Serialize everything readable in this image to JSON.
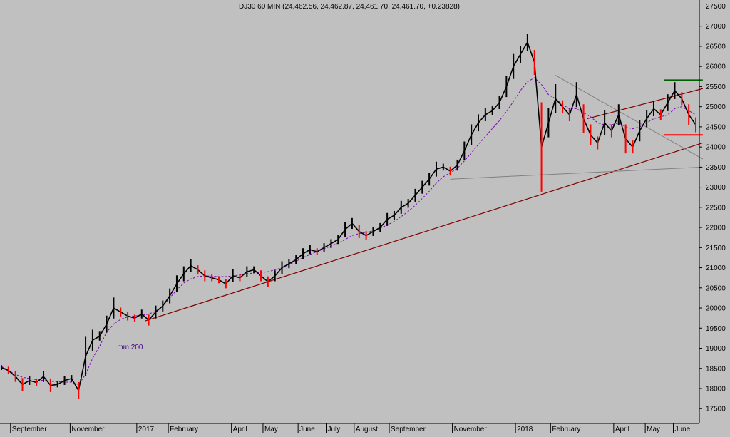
{
  "colors": {
    "background": "#c0c0c0",
    "candle": "#000000",
    "candle_down": "#ff0000",
    "ma_line": "#8000c0",
    "trendline": "#800000",
    "resistance": "#006000",
    "support": "#ff0000",
    "grey_line": "#808080",
    "text": "#000000",
    "annotation": "#400080"
  },
  "chart_data": {
    "type": "line",
    "title": "DJ30 60 MIN (24,462.56, 24,462.87, 24,461.70, 24,461.70, +0.23828)",
    "xlabel": "",
    "ylabel": "",
    "ylim": [
      17150,
      27650
    ],
    "grid": false,
    "y_ticks": [
      17500,
      18000,
      18500,
      19000,
      19500,
      20000,
      20500,
      21000,
      21500,
      22000,
      22500,
      23000,
      23500,
      24000,
      24500,
      25000,
      25500,
      26000,
      26500,
      27000,
      27500
    ],
    "x_ticks": [
      {
        "label": "September",
        "i": 1.5
      },
      {
        "label": "November",
        "i": 10
      },
      {
        "label": "2017",
        "i": 19.5
      },
      {
        "label": "February",
        "i": 24
      },
      {
        "label": "April",
        "i": 33
      },
      {
        "label": "May",
        "i": 37.5
      },
      {
        "label": "June",
        "i": 42.5
      },
      {
        "label": "July",
        "i": 46.5
      },
      {
        "label": "August",
        "i": 50.5
      },
      {
        "label": "September",
        "i": 55.5
      },
      {
        "label": "November",
        "i": 64.5
      },
      {
        "label": "2018",
        "i": 73.5
      },
      {
        "label": "February",
        "i": 78.5
      },
      {
        "label": "April",
        "i": 87.5
      },
      {
        "label": "May",
        "i": 92
      },
      {
        "label": "June",
        "i": 96
      }
    ],
    "series": [
      {
        "values": [
          18520,
          18450,
          18300,
          18100,
          18200,
          18150,
          18300,
          18080,
          18100,
          18200,
          18250,
          17950,
          18800,
          19200,
          19300,
          19600,
          20000,
          19900,
          19800,
          19750,
          19850,
          19700,
          19900,
          20050,
          20300,
          20600,
          20850,
          21050,
          20950,
          20800,
          20750,
          20700,
          20600,
          20800,
          20750,
          20900,
          20950,
          20800,
          20650,
          20800,
          21000,
          21100,
          21200,
          21350,
          21450,
          21400,
          21500,
          21600,
          21700,
          21950,
          22100,
          21900,
          21800,
          21900,
          22000,
          22200,
          22300,
          22500,
          22600,
          22800,
          23000,
          23200,
          23450,
          23500,
          23400,
          23550,
          23900,
          24300,
          24600,
          24800,
          24900,
          25100,
          25500,
          26000,
          26300,
          26600,
          26100,
          24000,
          24600,
          25200,
          25000,
          24800,
          25300,
          24700,
          24300,
          24100,
          24600,
          24400,
          24800,
          24200,
          24000,
          24400,
          24700,
          24950,
          24800,
          25100,
          25400,
          25200,
          24800,
          24550
        ]
      },
      {
        "name": "mm 200",
        "values": [
          18550,
          18450,
          18350,
          18280,
          18250,
          18220,
          18200,
          18180,
          18170,
          18160,
          18160,
          18100,
          18350,
          18750,
          19050,
          19400,
          19600,
          19720,
          19780,
          19800,
          19820,
          19850,
          19920,
          20050,
          20250,
          20450,
          20620,
          20720,
          20780,
          20800,
          20790,
          20780,
          20780,
          20800,
          20820,
          20850,
          20870,
          20880,
          20900,
          20950,
          21000,
          21080,
          21160,
          21250,
          21330,
          21400,
          21470,
          21540,
          21610,
          21700,
          21800,
          21850,
          21880,
          21920,
          21980,
          22060,
          22150,
          22270,
          22400,
          22550,
          22720,
          22900,
          23100,
          23260,
          23360,
          23470,
          23650,
          23850,
          24060,
          24260,
          24460,
          24650,
          24880,
          25130,
          25400,
          25620,
          25720,
          25550,
          25300,
          25200,
          25050,
          24950,
          24950,
          24850,
          24750,
          24600,
          24550,
          24550,
          24600,
          24500,
          24450,
          24500,
          24600,
          24700,
          24750,
          24800,
          24950,
          25000,
          24900,
          24800
        ]
      }
    ],
    "annotations": [
      {
        "text": "mm 200",
        "x": 16.5,
        "y": 18975
      },
      {
        "type": "trendline",
        "label": "",
        "from": [
          20.5,
          19680
        ],
        "to": [
          100,
          24100
        ]
      },
      {
        "type": "line",
        "label": "",
        "from": [
          64,
          23200
        ],
        "to": [
          100,
          23500
        ]
      },
      {
        "type": "line",
        "label": "",
        "from": [
          79,
          25780
        ],
        "to": [
          100,
          23700
        ]
      },
      {
        "type": "trendline",
        "label": "",
        "from": [
          83.5,
          24700
        ],
        "to": [
          100,
          25450
        ]
      },
      {
        "type": "level",
        "label": "",
        "value": 25660,
        "from": 94.5,
        "to": 100
      },
      {
        "type": "level",
        "label": "",
        "value": 24300,
        "from": 94.5,
        "to": 100
      }
    ]
  }
}
